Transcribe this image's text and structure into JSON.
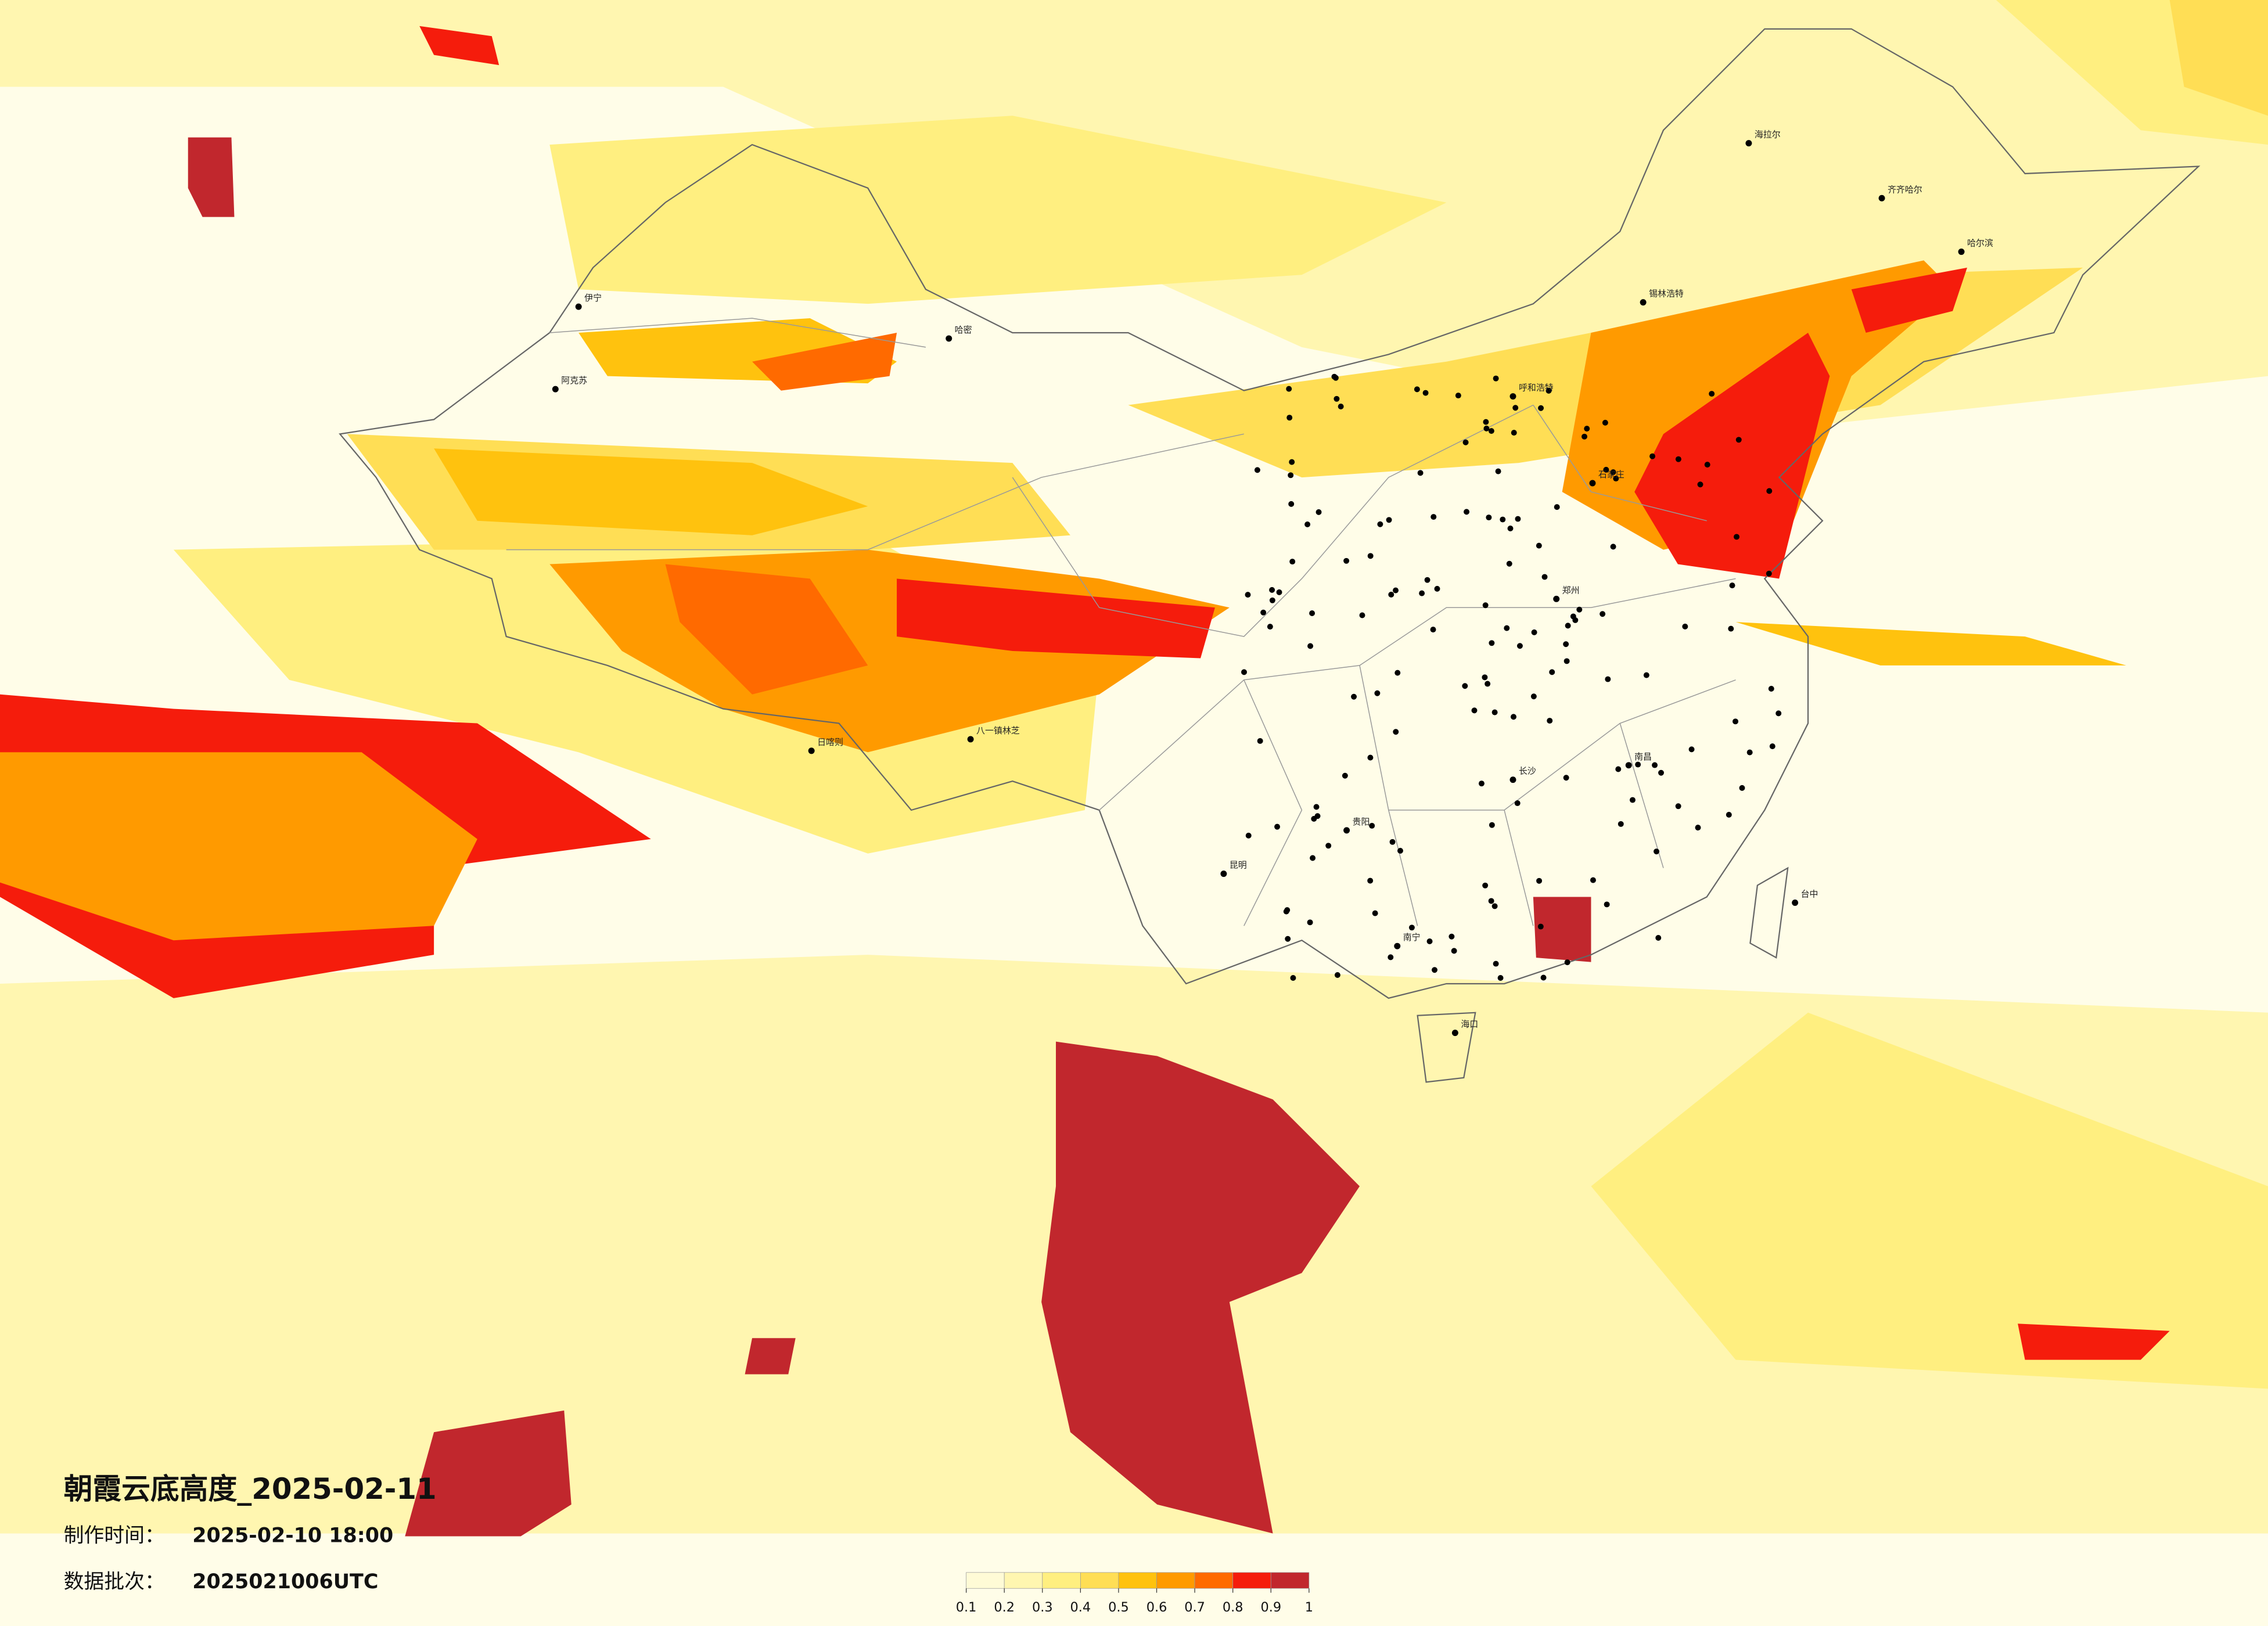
{
  "header": {
    "title": "朝霞云底高度_2025-02-11",
    "made_label": "制作时间：",
    "made_time": "2025-02-10 18:00",
    "batch_label": "数据批次：",
    "batch": "2025021006UTC"
  },
  "legend": {
    "ticks": [
      0.1,
      0.2,
      0.3,
      0.4,
      0.5,
      0.6,
      0.7,
      0.8,
      0.9,
      1
    ],
    "colors": [
      "#fffbd6",
      "#fff6b0",
      "#ffef80",
      "#ffde55",
      "#ffc20e",
      "#ff9a00",
      "#ff6a00",
      "#f51c0c",
      "#c1272d"
    ]
  },
  "cities": [
    "海拉尔",
    "齐齐哈尔",
    "哈尔滨",
    "锡林浩特",
    "呼和浩特",
    "石家庄",
    "郑州",
    "贵阳",
    "南宁",
    "昆明",
    "长沙",
    "南昌",
    "台中",
    "海口",
    "日喀则",
    "伊宁",
    "阿克苏",
    "哈密",
    "八一镇林芝"
  ]
}
